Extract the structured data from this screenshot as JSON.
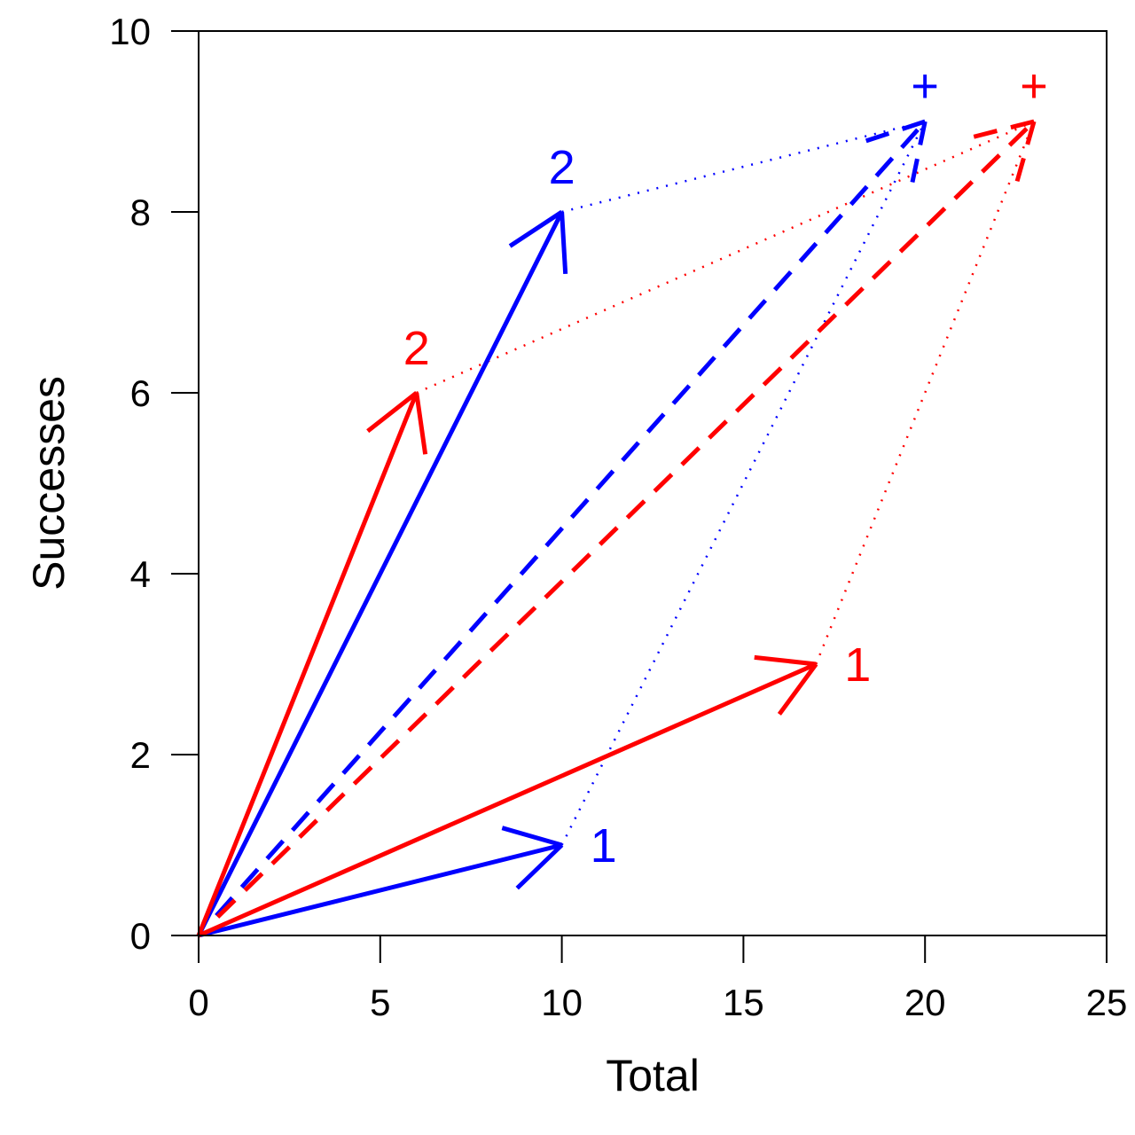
{
  "chart_data": {
    "type": "line",
    "title": "",
    "xlabel": "Total",
    "ylabel": "Successes",
    "xlim": [
      0,
      25
    ],
    "ylim": [
      0,
      10
    ],
    "xticks": [
      0,
      5,
      10,
      15,
      20,
      25
    ],
    "yticks": [
      0,
      2,
      4,
      6,
      8,
      10
    ],
    "xtick_labels": [
      "0",
      "5",
      "10",
      "15",
      "20",
      "25"
    ],
    "ytick_labels": [
      "0",
      "2",
      "4",
      "6",
      "8",
      "10"
    ],
    "grid": false,
    "series": [
      {
        "color": "#0000ff",
        "vectors": [
          {
            "label": "1",
            "x": 10,
            "y": 1
          },
          {
            "label": "2",
            "x": 10,
            "y": 8
          },
          {
            "label": "+",
            "x": 20,
            "y": 9
          }
        ]
      },
      {
        "color": "#ff0000",
        "vectors": [
          {
            "label": "1",
            "x": 17,
            "y": 3
          },
          {
            "label": "2",
            "x": 6,
            "y": 6
          },
          {
            "label": "+",
            "x": 23,
            "y": 9
          }
        ]
      }
    ]
  }
}
